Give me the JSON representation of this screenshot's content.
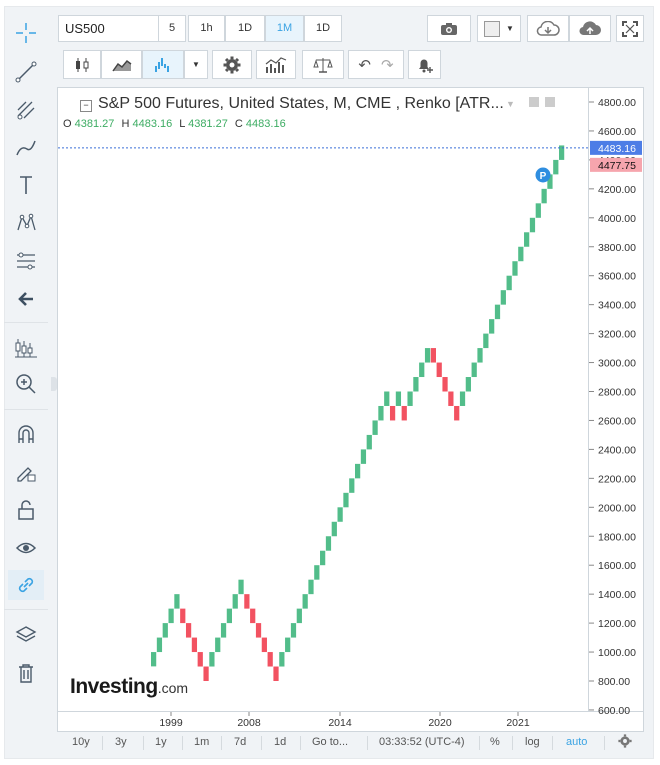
{
  "toolbar": {
    "symbol": "US500",
    "timeframes": [
      "5",
      "1h",
      "1D",
      "1M",
      "1D"
    ],
    "active_timeframe_index": 3
  },
  "legend": {
    "title": "S&P 500 Futures, United States, M, CME , Renko [ATR...",
    "o_label": "O",
    "o_value": "4381.27",
    "h_label": "H",
    "h_value": "4483.16",
    "l_label": "L",
    "l_value": "4381.27",
    "c_label": "C",
    "c_value": "4483.16"
  },
  "price_axis": {
    "ticks": [
      "4800.00",
      "4600.00",
      "4400.00",
      "4200.00",
      "4000.00",
      "3800.00",
      "3600.00",
      "3400.00",
      "3200.00",
      "3000.00",
      "2800.00",
      "2600.00",
      "2400.00",
      "2200.00",
      "2000.00",
      "1800.00",
      "1600.00",
      "1400.00",
      "1200.00",
      "1000.00",
      "800.00",
      "600.00"
    ],
    "last_price_label": "4483.16",
    "prev_price_label": "4477.75"
  },
  "time_axis": {
    "labels": [
      "1999",
      "2008",
      "2014",
      "2020",
      "2021"
    ]
  },
  "watermark": {
    "brand_main": "Investing",
    "brand_suffix": ".com"
  },
  "marker": {
    "label": "P"
  },
  "bottom_bar": {
    "ranges": [
      "10y",
      "3y",
      "1y",
      "1m",
      "7d",
      "1d"
    ],
    "goto": "Go to...",
    "clock": "03:33:52 (UTC-4)",
    "percent": "%",
    "log": "log",
    "auto": "auto"
  },
  "colors": {
    "up": "#52bd8a",
    "down": "#f25261",
    "accent": "#3aa3e3",
    "last_price_bg": "#4d7de6",
    "prev_price_bg": "#f6a5ad"
  },
  "chart_data": {
    "type": "renko",
    "x_labels": [
      "1999",
      "2008",
      "2014",
      "2020",
      "2021"
    ],
    "ylim": [
      600,
      4800
    ],
    "bricks": [
      {
        "low": 901,
        "high": 1000,
        "dir": "up"
      },
      {
        "low": 1000,
        "high": 1100,
        "dir": "up"
      },
      {
        "low": 1100,
        "high": 1200,
        "dir": "up"
      },
      {
        "low": 1200,
        "high": 1300,
        "dir": "up"
      },
      {
        "low": 1300,
        "high": 1400,
        "dir": "up"
      },
      {
        "low": 1200,
        "high": 1300,
        "dir": "down"
      },
      {
        "low": 1100,
        "high": 1200,
        "dir": "down"
      },
      {
        "low": 1000,
        "high": 1100,
        "dir": "down"
      },
      {
        "low": 900,
        "high": 1000,
        "dir": "down"
      },
      {
        "low": 800,
        "high": 900,
        "dir": "down"
      },
      {
        "low": 900,
        "high": 1000,
        "dir": "up"
      },
      {
        "low": 1000,
        "high": 1100,
        "dir": "up"
      },
      {
        "low": 1100,
        "high": 1200,
        "dir": "up"
      },
      {
        "low": 1200,
        "high": 1300,
        "dir": "up"
      },
      {
        "low": 1300,
        "high": 1400,
        "dir": "up"
      },
      {
        "low": 1400,
        "high": 1500,
        "dir": "up"
      },
      {
        "low": 1300,
        "high": 1400,
        "dir": "down"
      },
      {
        "low": 1200,
        "high": 1300,
        "dir": "down"
      },
      {
        "low": 1100,
        "high": 1200,
        "dir": "down"
      },
      {
        "low": 1000,
        "high": 1100,
        "dir": "down"
      },
      {
        "low": 900,
        "high": 1000,
        "dir": "down"
      },
      {
        "low": 800,
        "high": 900,
        "dir": "down"
      },
      {
        "low": 900,
        "high": 1000,
        "dir": "up"
      },
      {
        "low": 1000,
        "high": 1100,
        "dir": "up"
      },
      {
        "low": 1100,
        "high": 1200,
        "dir": "up"
      },
      {
        "low": 1200,
        "high": 1300,
        "dir": "up"
      },
      {
        "low": 1300,
        "high": 1400,
        "dir": "up"
      },
      {
        "low": 1400,
        "high": 1500,
        "dir": "up"
      },
      {
        "low": 1500,
        "high": 1600,
        "dir": "up"
      },
      {
        "low": 1600,
        "high": 1700,
        "dir": "up"
      },
      {
        "low": 1700,
        "high": 1800,
        "dir": "up"
      },
      {
        "low": 1800,
        "high": 1900,
        "dir": "up"
      },
      {
        "low": 1900,
        "high": 2000,
        "dir": "up"
      },
      {
        "low": 2000,
        "high": 2100,
        "dir": "up"
      },
      {
        "low": 2100,
        "high": 2200,
        "dir": "up"
      },
      {
        "low": 2200,
        "high": 2300,
        "dir": "up"
      },
      {
        "low": 2300,
        "high": 2400,
        "dir": "up"
      },
      {
        "low": 2400,
        "high": 2500,
        "dir": "up"
      },
      {
        "low": 2500,
        "high": 2600,
        "dir": "up"
      },
      {
        "low": 2600,
        "high": 2700,
        "dir": "up"
      },
      {
        "low": 2700,
        "high": 2800,
        "dir": "up"
      },
      {
        "low": 2600,
        "high": 2700,
        "dir": "down"
      },
      {
        "low": 2700,
        "high": 2800,
        "dir": "up"
      },
      {
        "low": 2600,
        "high": 2700,
        "dir": "down"
      },
      {
        "low": 2700,
        "high": 2800,
        "dir": "up"
      },
      {
        "low": 2800,
        "high": 2900,
        "dir": "up"
      },
      {
        "low": 2900,
        "high": 3000,
        "dir": "up"
      },
      {
        "low": 3000,
        "high": 3100,
        "dir": "up"
      },
      {
        "low": 3000,
        "high": 3100,
        "dir": "down"
      },
      {
        "low": 2900,
        "high": 3000,
        "dir": "down"
      },
      {
        "low": 2800,
        "high": 2900,
        "dir": "down"
      },
      {
        "low": 2700,
        "high": 2800,
        "dir": "down"
      },
      {
        "low": 2600,
        "high": 2700,
        "dir": "down"
      },
      {
        "low": 2700,
        "high": 2800,
        "dir": "up"
      },
      {
        "low": 2800,
        "high": 2900,
        "dir": "up"
      },
      {
        "low": 2900,
        "high": 3000,
        "dir": "up"
      },
      {
        "low": 3000,
        "high": 3100,
        "dir": "up"
      },
      {
        "low": 3100,
        "high": 3200,
        "dir": "up"
      },
      {
        "low": 3200,
        "high": 3300,
        "dir": "up"
      },
      {
        "low": 3300,
        "high": 3400,
        "dir": "up"
      },
      {
        "low": 3400,
        "high": 3500,
        "dir": "up"
      },
      {
        "low": 3500,
        "high": 3600,
        "dir": "up"
      },
      {
        "low": 3600,
        "high": 3700,
        "dir": "up"
      },
      {
        "low": 3700,
        "high": 3800,
        "dir": "up"
      },
      {
        "low": 3800,
        "high": 3900,
        "dir": "up"
      },
      {
        "low": 3900,
        "high": 4000,
        "dir": "up"
      },
      {
        "low": 4000,
        "high": 4100,
        "dir": "up"
      },
      {
        "low": 4100,
        "high": 4200,
        "dir": "up"
      },
      {
        "low": 4200,
        "high": 4300,
        "dir": "up"
      },
      {
        "low": 4300,
        "high": 4400,
        "dir": "up"
      },
      {
        "low": 4400,
        "high": 4500,
        "dir": "up"
      }
    ],
    "last_price": 4483.16
  }
}
